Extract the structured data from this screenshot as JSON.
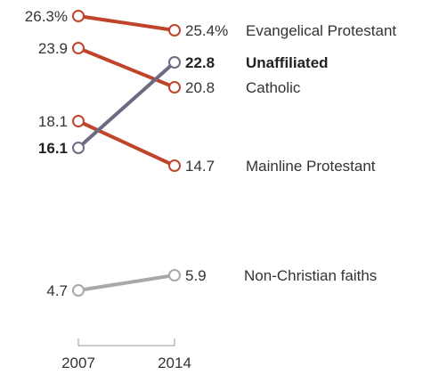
{
  "chart_data": {
    "type": "line",
    "x": [
      "2007",
      "2014"
    ],
    "ylim": [
      0,
      30
    ],
    "grid": false,
    "legend": "none",
    "series": [
      {
        "name": "Evangelical Protestant",
        "values": [
          26.3,
          25.4
        ],
        "start_label": "26.3%",
        "end_label": "25.4%",
        "color": "#c0442b",
        "bold": false
      },
      {
        "name": "Unaffiliated",
        "values": [
          16.1,
          22.8
        ],
        "start_label": "16.1",
        "end_label": "22.8",
        "color": "#6d6b82",
        "bold": true
      },
      {
        "name": "Catholic",
        "values": [
          23.9,
          20.8
        ],
        "start_label": "23.9",
        "end_label": "20.8",
        "color": "#c0442b",
        "bold": false
      },
      {
        "name": "Mainline Protestant",
        "values": [
          18.1,
          14.7
        ],
        "start_label": "18.1",
        "end_label": "14.7",
        "color": "#c0442b",
        "bold": false
      },
      {
        "name": "Non-Christian faiths",
        "values": [
          4.7,
          5.9
        ],
        "start_label": "4.7",
        "end_label": "5.9",
        "color": "#a8a8a8",
        "bold": false
      }
    ]
  }
}
